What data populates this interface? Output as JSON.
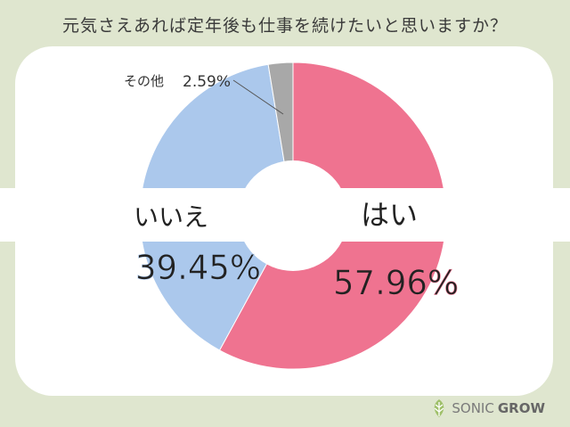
{
  "title": "元気さえあれば定年後も仕事を続けたいと思いますか？",
  "chart_data": {
    "type": "pie",
    "donut": true,
    "slices": [
      {
        "label": "はい",
        "value": 57.96,
        "display": "57.96%",
        "color": "#ef7390"
      },
      {
        "label": "いいえ",
        "value": 39.45,
        "display": "39.45%",
        "color": "#abc8ec"
      },
      {
        "label": "その他",
        "value": 2.59,
        "display": "2.59%",
        "color": "#a8a8a8"
      }
    ]
  },
  "brand": {
    "name_light": "SONIC",
    "name_bold": "GROW"
  }
}
